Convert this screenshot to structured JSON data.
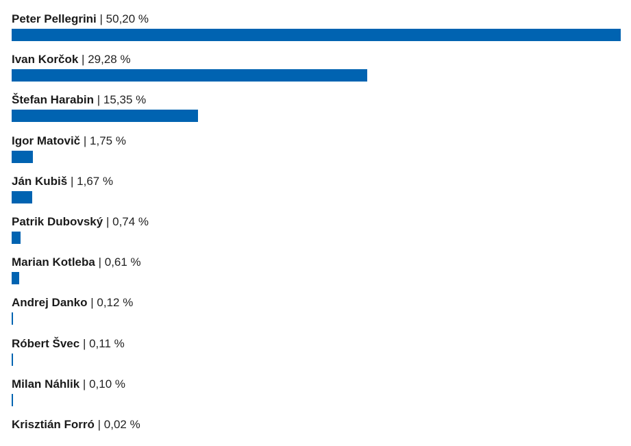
{
  "chart_data": {
    "type": "bar",
    "orientation": "horizontal",
    "bar_color": "#0063b1",
    "xlim": [
      0,
      50.2
    ],
    "categories": [
      "Peter Pellegrini",
      "Ivan Korčok",
      "Štefan Harabin",
      "Igor Matovič",
      "Ján Kubiš",
      "Patrik Dubovský",
      "Marian Kotleba",
      "Andrej Danko",
      "Róbert Švec",
      "Milan Náhlik",
      "Krisztián Forró"
    ],
    "values": [
      50.2,
      29.28,
      15.35,
      1.75,
      1.67,
      0.74,
      0.61,
      0.12,
      0.11,
      0.1,
      0.02
    ],
    "value_labels": [
      "50,20 %",
      "29,28 %",
      "15,35 %",
      "1,75 %",
      "1,67 %",
      "0,74 %",
      "0,61 %",
      "0,12 %",
      "0,11 %",
      "0,10 %",
      "0,02 %"
    ],
    "separator": "|",
    "title": "",
    "xlabel": "",
    "ylabel": "",
    "grid": false,
    "legend": "none"
  }
}
